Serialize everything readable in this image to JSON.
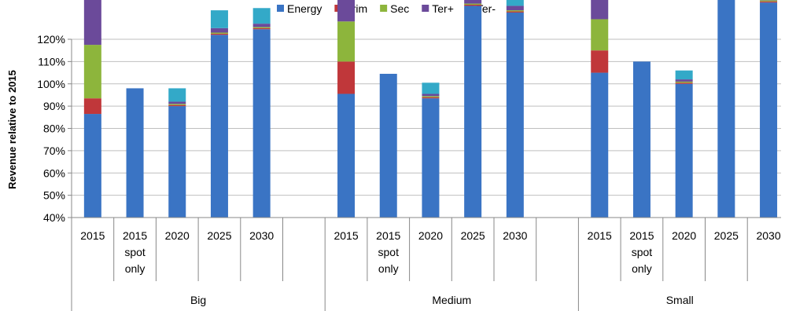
{
  "chart_data": {
    "type": "bar",
    "stacked": true,
    "ylabel": "Revenue relative to 2015",
    "xlabel": "",
    "ylim": [
      0.4,
      1.2
    ],
    "yticks": [
      "40%",
      "50%",
      "60%",
      "70%",
      "80%",
      "90%",
      "100%",
      "110%",
      "120%"
    ],
    "grid": true,
    "legend_position": "top",
    "colors": {
      "Energy": "#3a74c4",
      "Prim": "#c0373a",
      "Sec": "#8db53c",
      "Ter+": "#6b4a9a",
      "Ter-": "#33a9c8"
    },
    "series": [
      {
        "name": "Energy"
      },
      {
        "name": "Prim"
      },
      {
        "name": "Sec"
      },
      {
        "name": "Ter+"
      },
      {
        "name": "Ter-"
      }
    ],
    "groups": [
      {
        "name": "Big",
        "categories": [
          {
            "label": [
              "2015"
            ],
            "values": [
              0.465,
              0.07,
              0.24,
              0.225,
              0.003
            ]
          },
          {
            "label": [
              "2015",
              "spot",
              "only"
            ],
            "values": [
              0.58,
              0,
              0,
              0,
              0
            ]
          },
          {
            "label": [
              "2020"
            ],
            "values": [
              0.5,
              0.005,
              0.005,
              0.01,
              0.06
            ]
          },
          {
            "label": [
              "2025"
            ],
            "values": [
              0.82,
              0.005,
              0.005,
              0.02,
              0.08
            ]
          },
          {
            "label": [
              "2030"
            ],
            "values": [
              0.845,
              0.005,
              0.005,
              0.015,
              0.07
            ]
          }
        ]
      },
      {
        "name": "Medium",
        "categories": [
          {
            "label": [
              "2015"
            ],
            "values": [
              0.555,
              0.145,
              0.18,
              0.115,
              0.005
            ]
          },
          {
            "label": [
              "2015",
              "spot",
              "only"
            ],
            "values": [
              0.645,
              0,
              0,
              0,
              0
            ]
          },
          {
            "label": [
              "2020"
            ],
            "values": [
              0.535,
              0.005,
              0.005,
              0.01,
              0.05
            ]
          },
          {
            "label": [
              "2025"
            ],
            "values": [
              0.95,
              0.005,
              0.005,
              0.02,
              0.07
            ]
          },
          {
            "label": [
              "2030"
            ],
            "values": [
              0.92,
              0.005,
              0.005,
              0.02,
              0.06
            ]
          }
        ]
      },
      {
        "name": "Small",
        "categories": [
          {
            "label": [
              "2015"
            ],
            "values": [
              0.65,
              0.1,
              0.14,
              0.095,
              0.015
            ]
          },
          {
            "label": [
              "2015",
              "spot",
              "only"
            ],
            "values": [
              0.7,
              0,
              0,
              0,
              0
            ]
          },
          {
            "label": [
              "2020"
            ],
            "values": [
              0.6,
              0.005,
              0.005,
              0.01,
              0.04
            ]
          },
          {
            "label": [
              "2025"
            ],
            "values": [
              1.03,
              0.005,
              0.005,
              0.02,
              0.06
            ]
          },
          {
            "label": [
              "2030"
            ],
            "values": [
              0.965,
              0.005,
              0.005,
              0.015,
              0.055
            ]
          }
        ]
      }
    ]
  }
}
